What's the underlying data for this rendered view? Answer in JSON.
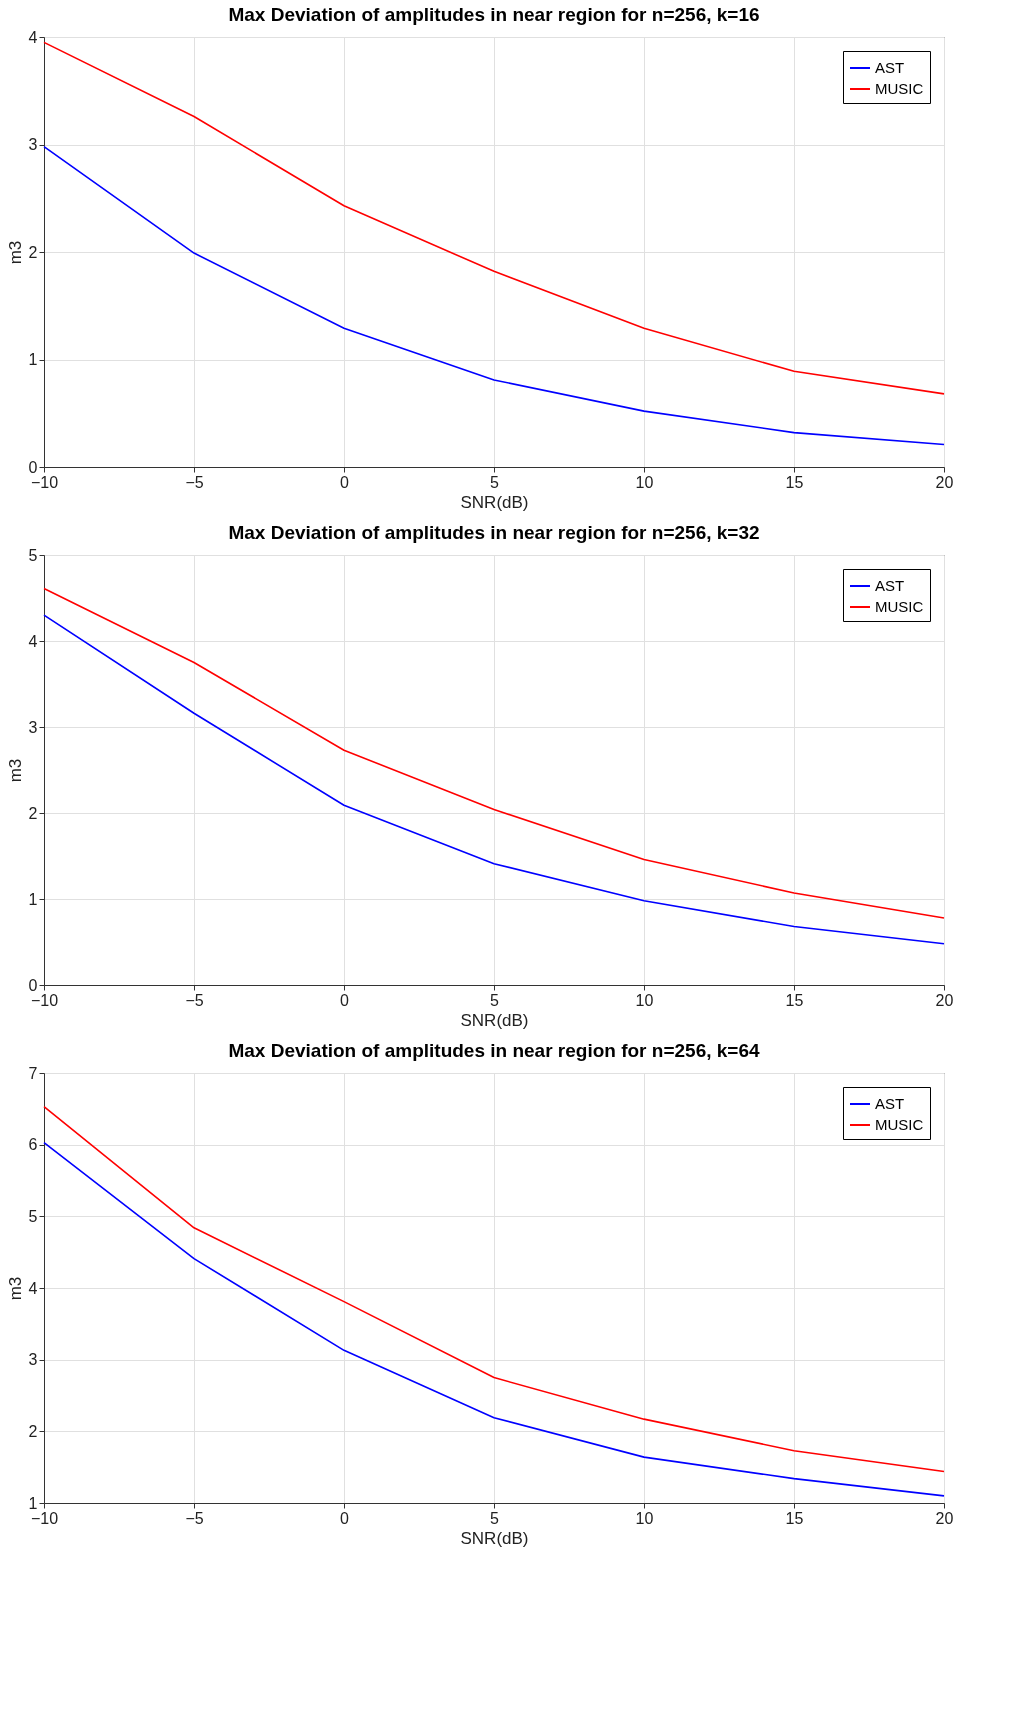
{
  "chart_data": [
    {
      "type": "line",
      "title": "Max Deviation of amplitudes in near region for n=256, k=16",
      "xlabel": "SNR(dB)",
      "ylabel": "m3",
      "x": [
        -10,
        -5,
        0,
        5,
        10,
        15,
        20
      ],
      "xlim": [
        -10,
        20
      ],
      "xticks": [
        -10,
        -5,
        0,
        5,
        10,
        15,
        20
      ],
      "ylim": [
        0,
        4
      ],
      "yticks": [
        0,
        1,
        2,
        3,
        4
      ],
      "grid": true,
      "legend": "top right",
      "series": [
        {
          "name": "AST",
          "color": "#0000ff",
          "values": [
            2.98,
            1.99,
            1.29,
            0.81,
            0.52,
            0.32,
            0.21
          ]
        },
        {
          "name": "MUSIC",
          "color": "#ff0000",
          "values": [
            3.95,
            3.26,
            2.43,
            1.82,
            1.29,
            0.89,
            0.68
          ]
        }
      ]
    },
    {
      "type": "line",
      "title": "Max Deviation of amplitudes in near region for n=256, k=32",
      "xlabel": "SNR(dB)",
      "ylabel": "m3",
      "x": [
        -10,
        -5,
        0,
        5,
        10,
        15,
        20
      ],
      "xlim": [
        -10,
        20
      ],
      "xticks": [
        -10,
        -5,
        0,
        5,
        10,
        15,
        20
      ],
      "ylim": [
        0,
        5
      ],
      "yticks": [
        0,
        1,
        2,
        3,
        4,
        5
      ],
      "grid": true,
      "legend": "top right",
      "series": [
        {
          "name": "AST",
          "color": "#0000ff",
          "values": [
            4.3,
            3.16,
            2.09,
            1.41,
            0.98,
            0.68,
            0.48
          ]
        },
        {
          "name": "MUSIC",
          "color": "#ff0000",
          "values": [
            4.61,
            3.75,
            2.73,
            2.04,
            1.46,
            1.07,
            0.78
          ]
        }
      ]
    },
    {
      "type": "line",
      "title": "Max Deviation of amplitudes in near region for n=256, k=64",
      "xlabel": "SNR(dB)",
      "ylabel": "m3",
      "x": [
        -10,
        -5,
        0,
        5,
        10,
        15,
        20
      ],
      "xlim": [
        -10,
        20
      ],
      "xticks": [
        -10,
        -5,
        0,
        5,
        10,
        15,
        20
      ],
      "ylim": [
        1,
        7
      ],
      "yticks": [
        1,
        2,
        3,
        4,
        5,
        6,
        7
      ],
      "grid": true,
      "legend": "top right",
      "series": [
        {
          "name": "AST",
          "color": "#0000ff",
          "values": [
            6.03,
            4.41,
            3.13,
            2.19,
            1.64,
            1.34,
            1.1
          ]
        },
        {
          "name": "MUSIC",
          "color": "#ff0000",
          "values": [
            6.53,
            4.84,
            3.81,
            2.75,
            2.17,
            1.73,
            1.44
          ]
        }
      ]
    }
  ]
}
